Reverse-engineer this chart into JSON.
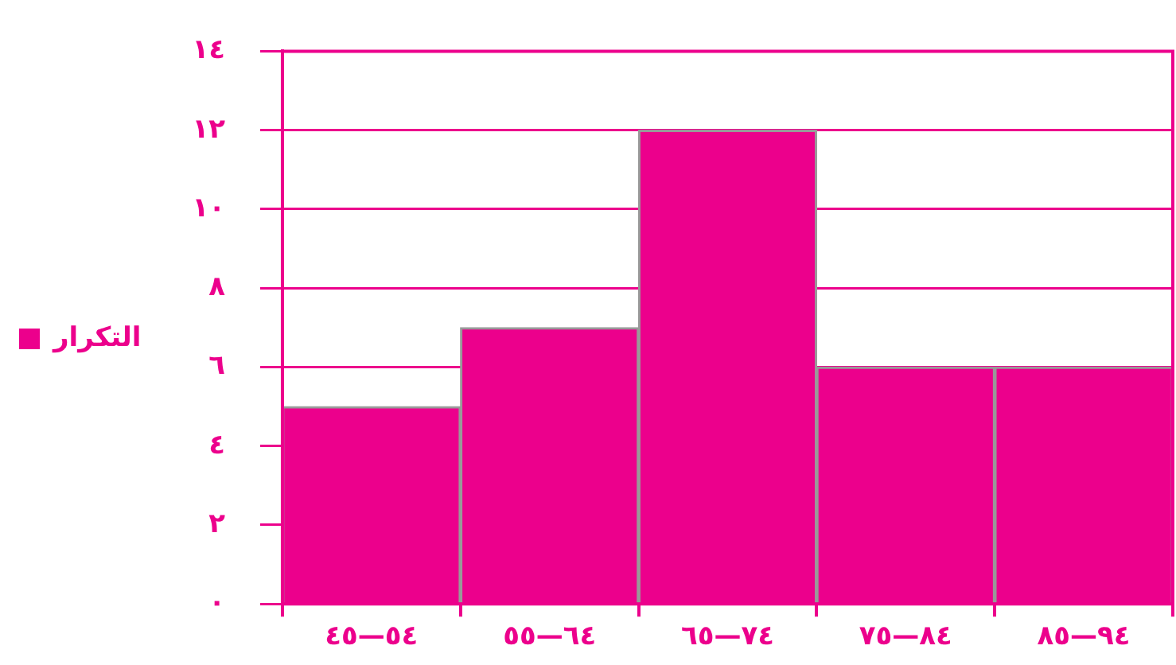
{
  "chart_data": {
    "type": "bar",
    "categories": [
      "٤٥—٥٤",
      "٥٥—٦٤",
      "٦٥—٧٤",
      "٧٥—٨٤",
      "٨٥—٩٤"
    ],
    "series": [
      {
        "name": "التكرار",
        "color": "#ec008c",
        "values": [
          5,
          7,
          12,
          6,
          6
        ]
      }
    ],
    "ylim": [
      0,
      14
    ],
    "yticks": [
      {
        "value": 0,
        "label": "٠"
      },
      {
        "value": 2,
        "label": "٢"
      },
      {
        "value": 4,
        "label": "٤"
      },
      {
        "value": 6,
        "label": "٦"
      },
      {
        "value": 8,
        "label": "٨"
      },
      {
        "value": 10,
        "label": "١٠"
      },
      {
        "value": 12,
        "label": "١٢"
      },
      {
        "value": 14,
        "label": "١٤"
      }
    ],
    "grid": "y",
    "legend": "left"
  }
}
